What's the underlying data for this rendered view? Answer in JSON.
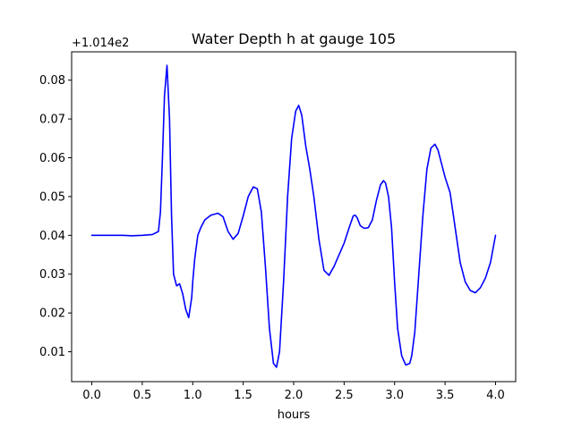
{
  "chart_data": {
    "type": "line",
    "title": "Water Depth h at gauge 105",
    "xlabel": "hours",
    "ylabel": "",
    "y_offset_label": "+1.014e2",
    "xlim": [
      -0.2,
      4.2
    ],
    "ylim": [
      0.0023,
      0.0873
    ],
    "x_ticks": [
      0.0,
      0.5,
      1.0,
      1.5,
      2.0,
      2.5,
      3.0,
      3.5,
      4.0
    ],
    "x_tick_labels": [
      "0.0",
      "0.5",
      "1.0",
      "1.5",
      "2.0",
      "2.5",
      "3.0",
      "3.5",
      "4.0"
    ],
    "y_ticks": [
      0.01,
      0.02,
      0.03,
      0.04,
      0.05,
      0.06,
      0.07,
      0.08
    ],
    "y_tick_labels": [
      "0.01",
      "0.02",
      "0.03",
      "0.04",
      "0.05",
      "0.06",
      "0.07",
      "0.08"
    ],
    "grid": false,
    "series": [
      {
        "color": "#0000ff",
        "x": [
          0.0,
          0.1,
          0.2,
          0.3,
          0.4,
          0.5,
          0.6,
          0.66,
          0.68,
          0.7,
          0.72,
          0.745,
          0.77,
          0.79,
          0.81,
          0.84,
          0.87,
          0.9,
          0.93,
          0.96,
          0.99,
          1.0,
          1.02,
          1.05,
          1.08,
          1.12,
          1.18,
          1.25,
          1.3,
          1.35,
          1.4,
          1.45,
          1.5,
          1.55,
          1.6,
          1.64,
          1.68,
          1.72,
          1.76,
          1.8,
          1.83,
          1.86,
          1.9,
          1.94,
          1.98,
          2.02,
          2.05,
          2.08,
          2.12,
          2.16,
          2.2,
          2.25,
          2.3,
          2.35,
          2.4,
          2.45,
          2.5,
          2.55,
          2.59,
          2.61,
          2.63,
          2.66,
          2.7,
          2.74,
          2.78,
          2.82,
          2.86,
          2.89,
          2.91,
          2.94,
          2.97,
          3.0,
          3.03,
          3.07,
          3.11,
          3.15,
          3.17,
          3.2,
          3.24,
          3.28,
          3.32,
          3.36,
          3.4,
          3.43,
          3.46,
          3.5,
          3.55,
          3.6,
          3.65,
          3.7,
          3.75,
          3.8,
          3.85,
          3.9,
          3.95,
          4.0
        ],
        "y": [
          0.04,
          0.04,
          0.04,
          0.04,
          0.0399,
          0.04,
          0.0402,
          0.041,
          0.046,
          0.06,
          0.076,
          0.0838,
          0.07,
          0.045,
          0.03,
          0.027,
          0.0275,
          0.025,
          0.021,
          0.0188,
          0.024,
          0.028,
          0.034,
          0.04,
          0.042,
          0.044,
          0.0452,
          0.0457,
          0.0448,
          0.041,
          0.039,
          0.0405,
          0.045,
          0.05,
          0.0525,
          0.052,
          0.046,
          0.032,
          0.016,
          0.007,
          0.006,
          0.01,
          0.028,
          0.05,
          0.065,
          0.072,
          0.0735,
          0.071,
          0.063,
          0.057,
          0.05,
          0.039,
          0.031,
          0.0297,
          0.032,
          0.035,
          0.038,
          0.042,
          0.045,
          0.0452,
          0.0445,
          0.0425,
          0.0418,
          0.042,
          0.044,
          0.049,
          0.053,
          0.0541,
          0.0535,
          0.05,
          0.042,
          0.028,
          0.016,
          0.009,
          0.0066,
          0.007,
          0.009,
          0.015,
          0.03,
          0.045,
          0.057,
          0.0625,
          0.0635,
          0.062,
          0.059,
          0.055,
          0.051,
          0.042,
          0.033,
          0.028,
          0.0258,
          0.0252,
          0.0265,
          0.029,
          0.033,
          0.04
        ]
      }
    ]
  }
}
